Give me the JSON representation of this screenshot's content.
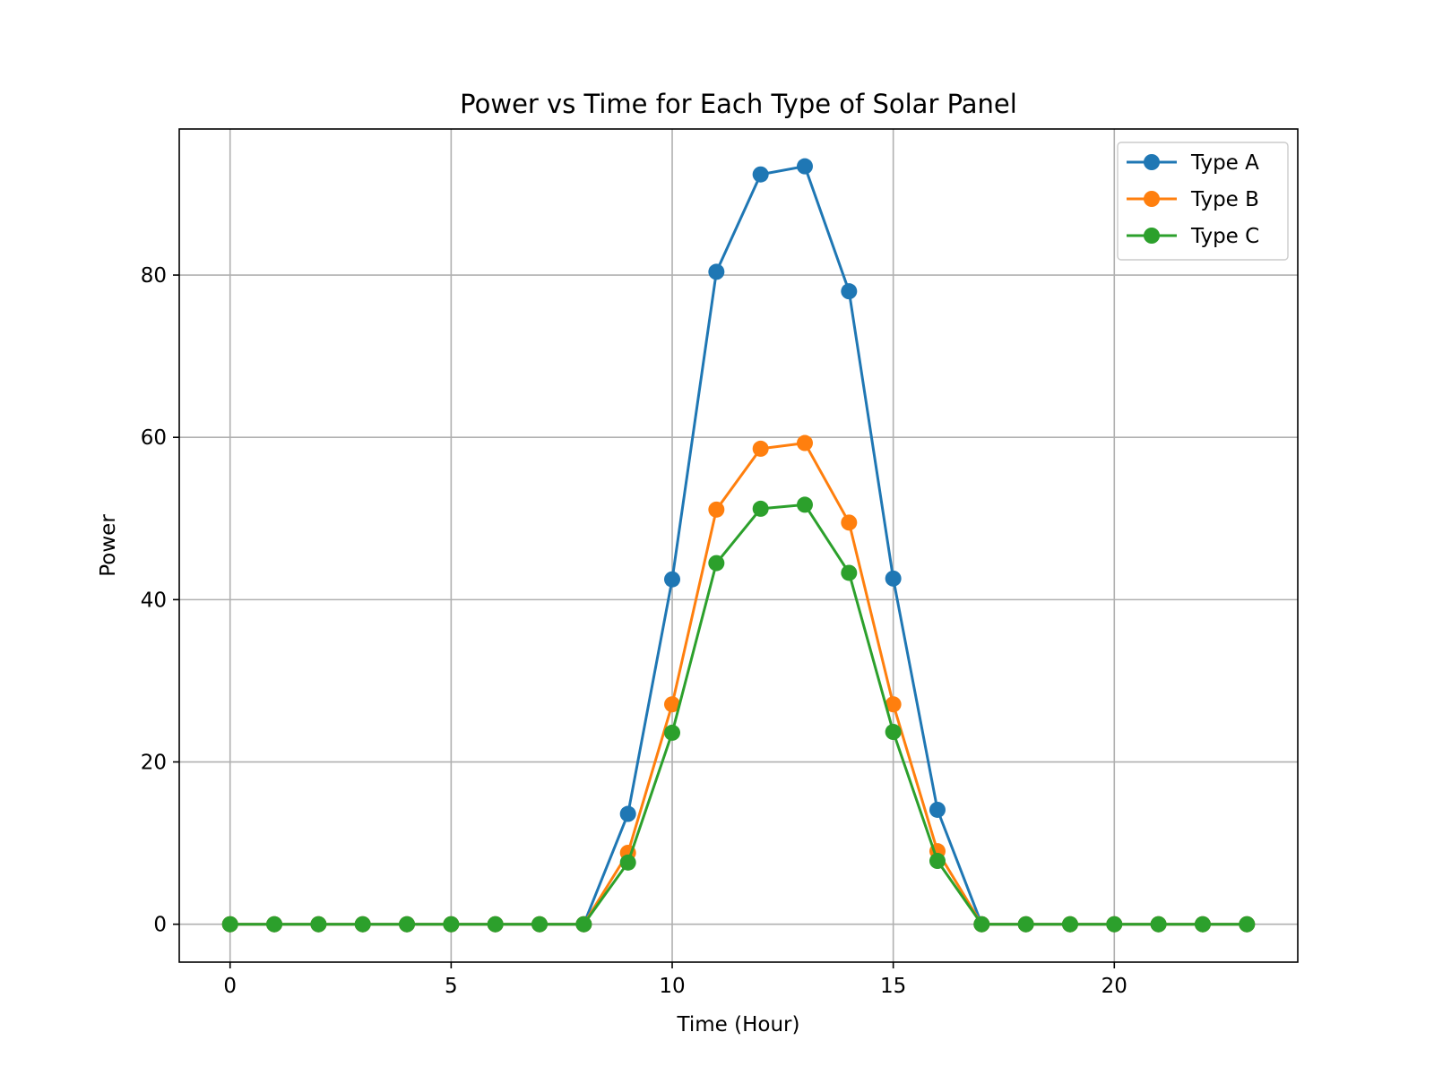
{
  "chart_data": {
    "type": "line",
    "title": "Power vs Time for Each Type of Solar Panel",
    "xlabel": "Time (Hour)",
    "ylabel": "Power",
    "xlim": [
      -1.15,
      24.15
    ],
    "ylim": [
      -4.67,
      98.0
    ],
    "xticks": [
      0,
      5,
      10,
      15,
      20
    ],
    "yticks": [
      0,
      20,
      40,
      60,
      80
    ],
    "grid": true,
    "legend_position": "top-right",
    "x": [
      0,
      1,
      2,
      3,
      4,
      5,
      6,
      7,
      8,
      9,
      10,
      11,
      12,
      13,
      14,
      15,
      16,
      17,
      18,
      19,
      20,
      21,
      22,
      23
    ],
    "series": [
      {
        "name": "Type A",
        "color": "#1f77b4",
        "values": [
          0,
          0,
          0,
          0,
          0,
          0,
          0,
          0,
          0,
          13.6,
          42.5,
          80.4,
          92.4,
          93.4,
          78.0,
          42.6,
          14.1,
          0,
          0,
          0,
          0,
          0,
          0,
          0
        ]
      },
      {
        "name": "Type B",
        "color": "#ff7f0e",
        "values": [
          0,
          0,
          0,
          0,
          0,
          0,
          0,
          0,
          0,
          8.8,
          27.1,
          51.1,
          58.6,
          59.3,
          49.5,
          27.1,
          9.0,
          0,
          0,
          0,
          0,
          0,
          0,
          0
        ]
      },
      {
        "name": "Type C",
        "color": "#2ca02c",
        "values": [
          0,
          0,
          0,
          0,
          0,
          0,
          0,
          0,
          0,
          7.6,
          23.6,
          44.5,
          51.2,
          51.7,
          43.3,
          23.7,
          7.8,
          0,
          0,
          0,
          0,
          0,
          0,
          0
        ]
      }
    ]
  }
}
